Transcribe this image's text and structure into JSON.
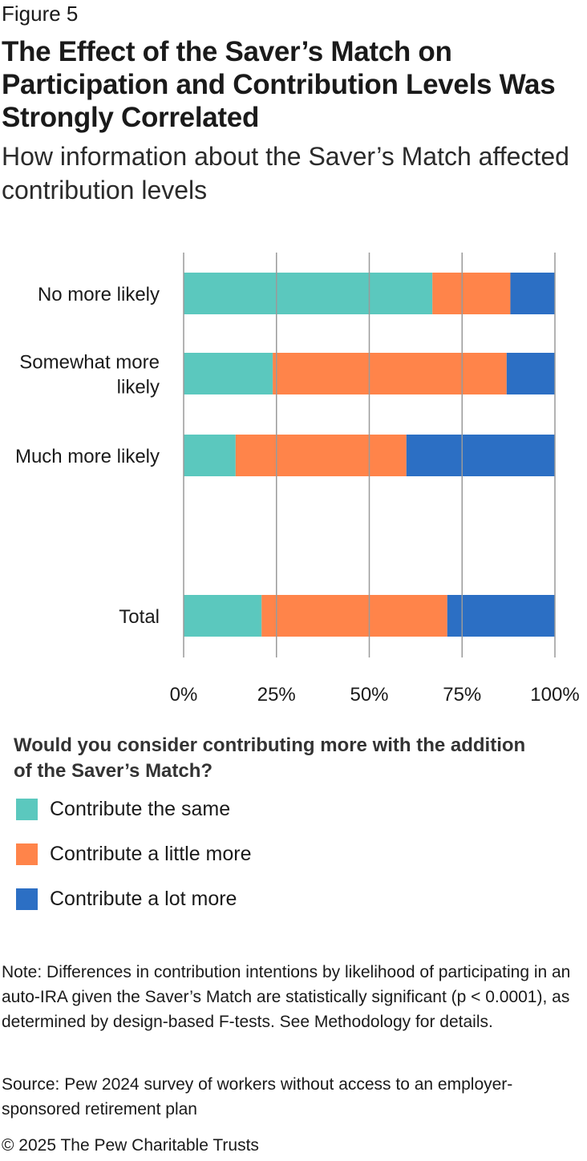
{
  "header": {
    "figure_label": "Figure 5",
    "title": "The Effect of the Saver’s Match on Participation and Contribution Levels Was Strongly Correlated",
    "subtitle": "How information about the Saver’s Match affected contribution levels"
  },
  "colors": {
    "contribute_same": "#5BC8BE",
    "contribute_little_more": "#FF844A",
    "contribute_lot_more": "#2C6FC4",
    "grid": "#9a9a9a"
  },
  "chart_data": {
    "type": "bar",
    "orientation": "horizontal",
    "stacked": true,
    "categories": [
      "No more likely",
      "Somewhat more likely",
      "Much more likely",
      "Total"
    ],
    "category_lines": [
      [
        "No more likely"
      ],
      [
        "Somewhat more",
        "likely"
      ],
      [
        "Much more likely"
      ],
      [
        "Total"
      ]
    ],
    "series": [
      {
        "name": "Contribute the same",
        "values": [
          67,
          24,
          14,
          21
        ]
      },
      {
        "name": "Contribute a little more",
        "values": [
          21,
          63,
          46,
          50
        ]
      },
      {
        "name": "Contribute a lot more",
        "values": [
          12,
          13,
          40,
          29
        ]
      }
    ],
    "xlim": [
      0,
      100
    ],
    "xticks": [
      "0%",
      "25%",
      "50%",
      "75%",
      "100%"
    ],
    "grid": true,
    "legend_position": "bottom"
  },
  "legend": {
    "title": "Would you consider contributing more with the addition of the Saver’s Match?",
    "items": [
      {
        "label": "Contribute the same",
        "color": "#5BC8BE"
      },
      {
        "label": "Contribute a little more",
        "color": "#FF844A"
      },
      {
        "label": "Contribute a lot more",
        "color": "#2C6FC4"
      }
    ]
  },
  "footer": {
    "note": "Note: Differences in contribution intentions by likelihood of participating in an auto-IRA given the Saver’s Match are statistically significant (p < 0.0001), as determined by design-based F-tests. See Methodology for details.",
    "source": "Source: Pew 2024 survey of workers without access to an employer-sponsored retirement plan",
    "copyright": "© 2025 The Pew Charitable Trusts"
  }
}
